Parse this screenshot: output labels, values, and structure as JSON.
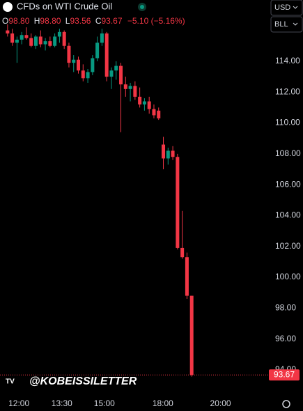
{
  "chart_data": {
    "type": "candlestick",
    "title": "CFDs on WTI Crude Oil",
    "ohlc_legend": {
      "o_label": "O",
      "o": "98.80",
      "h_label": "H",
      "h": "98.80",
      "l_label": "L",
      "l": "93.56",
      "c_label": "C",
      "c": "93.67",
      "change": "−5.10 (−5.16%)"
    },
    "currency": "USD",
    "unit": "BLL",
    "watermark": "@KOBEISSILETTER",
    "up_color": "#089981",
    "down_color": "#f23645",
    "open": [
      116.0,
      115.8,
      115.2,
      115.4,
      115.7,
      115.5,
      115.0,
      115.6,
      115.1,
      115.3,
      115.0,
      115.6,
      115.9,
      115.0,
      113.9,
      114.1,
      113.4,
      112.9,
      113.3,
      114.2,
      115.2,
      115.8,
      113.0,
      113.4,
      113.7,
      112.5,
      112.2,
      112.4,
      111.7,
      111.2,
      111.4,
      110.9,
      110.8,
      108.6,
      107.7,
      108.2,
      107.8,
      101.9,
      101.3,
      98.8
    ],
    "high": [
      116.4,
      116.1,
      115.6,
      115.9,
      116.2,
      115.8,
      115.7,
      116.0,
      115.5,
      115.6,
      115.8,
      116.1,
      116.0,
      115.2,
      114.4,
      114.3,
      113.8,
      113.5,
      114.4,
      115.6,
      116.1,
      115.9,
      113.6,
      114.0,
      113.9,
      113.0,
      112.6,
      112.7,
      112.3,
      111.6,
      111.7,
      111.2,
      111.0,
      109.1,
      108.4,
      108.5,
      108.0,
      104.3,
      101.6,
      98.8
    ],
    "low": [
      115.6,
      115.0,
      113.9,
      115.1,
      115.4,
      114.9,
      114.8,
      114.9,
      114.7,
      114.9,
      114.9,
      115.2,
      114.8,
      113.6,
      113.3,
      113.2,
      112.7,
      112.6,
      113.1,
      114.0,
      115.0,
      112.7,
      112.2,
      112.8,
      109.4,
      111.7,
      111.4,
      111.5,
      111.0,
      110.8,
      110.6,
      110.3,
      110.2,
      107.0,
      107.3,
      107.6,
      101.8,
      101.2,
      98.6,
      93.56
    ],
    "close": [
      115.8,
      115.2,
      115.4,
      115.7,
      115.5,
      115.0,
      115.6,
      115.1,
      115.3,
      115.0,
      115.6,
      115.9,
      115.0,
      113.9,
      114.1,
      113.4,
      112.9,
      113.3,
      114.2,
      115.2,
      115.8,
      113.0,
      113.4,
      113.7,
      112.5,
      112.2,
      112.4,
      111.7,
      111.2,
      111.4,
      110.9,
      110.5,
      110.3,
      107.7,
      108.2,
      107.8,
      101.9,
      101.3,
      98.8,
      93.67
    ],
    "ylim": [
      92.46,
      117.97
    ],
    "yticks": [
      {
        "value": 94,
        "label": "94.00"
      },
      {
        "value": 96,
        "label": "96.00"
      },
      {
        "value": 98,
        "label": "98.00"
      },
      {
        "value": 100,
        "label": "100.00"
      },
      {
        "value": 102,
        "label": "102.00"
      },
      {
        "value": 104,
        "label": "104.00"
      },
      {
        "value": 106,
        "label": "106.00"
      },
      {
        "value": 108,
        "label": "108.00"
      },
      {
        "value": 110,
        "label": "110.00"
      },
      {
        "value": 112,
        "label": "112.00"
      },
      {
        "value": 114,
        "label": "114.00"
      }
    ],
    "xlim": [
      -1.6,
      55.2
    ],
    "xticks": [
      {
        "value": 2.4,
        "label": "12:00"
      },
      {
        "value": 11.5,
        "label": "13:30"
      },
      {
        "value": 20.5,
        "label": "15:00"
      },
      {
        "value": 32.9,
        "label": "18:00"
      },
      {
        "value": 45.1,
        "label": "20:00"
      }
    ]
  }
}
